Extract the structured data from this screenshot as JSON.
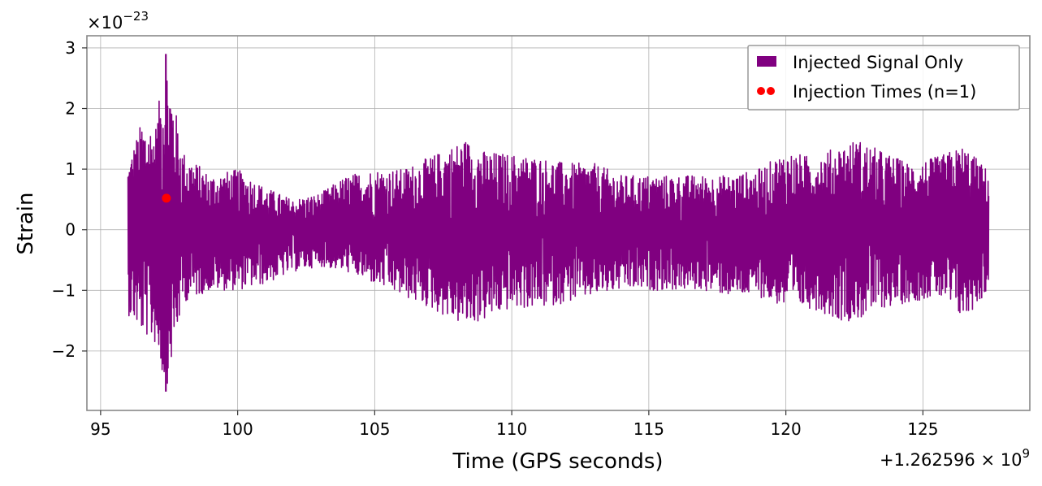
{
  "chart_data": {
    "type": "line",
    "title": "",
    "xlabel": "Time (GPS seconds)",
    "ylabel": "Strain",
    "x_offset_label": "+1.262596 × 10",
    "x_offset_exp": "9",
    "y_scale_label": "×10",
    "y_scale_exp": "−23",
    "xlim": [
      94.5,
      128.9
    ],
    "ylim": [
      -2.98,
      3.2
    ],
    "x_ticks": [
      95,
      100,
      105,
      110,
      115,
      120,
      125
    ],
    "x_tick_labels": [
      "95",
      "100",
      "105",
      "110",
      "115",
      "120",
      "125"
    ],
    "y_ticks": [
      -2,
      -1,
      0,
      1,
      2,
      3
    ],
    "y_tick_labels": [
      "−2",
      "−1",
      "0",
      "1",
      "2",
      "3"
    ],
    "grid": true,
    "legend_position": "top-right",
    "series": [
      {
        "name": "Injected Signal Only",
        "kind": "line",
        "color": "#800080",
        "x_start": 96.0,
        "x_end": 127.4,
        "envelope": [
          {
            "x": 96.0,
            "upper": 1.1,
            "lower": -1.4
          },
          {
            "x": 96.5,
            "upper": 1.8,
            "lower": -1.7
          },
          {
            "x": 97.0,
            "upper": 1.7,
            "lower": -1.9
          },
          {
            "x": 97.38,
            "upper": 2.9,
            "lower": -2.67
          },
          {
            "x": 98.0,
            "upper": 1.3,
            "lower": -1.2
          },
          {
            "x": 99.0,
            "upper": 0.9,
            "lower": -1.0
          },
          {
            "x": 100.0,
            "upper": 1.0,
            "lower": -1.0
          },
          {
            "x": 101.0,
            "upper": 0.7,
            "lower": -0.9
          },
          {
            "x": 102.0,
            "upper": 0.5,
            "lower": -0.7
          },
          {
            "x": 103.0,
            "upper": 0.6,
            "lower": -0.6
          },
          {
            "x": 104.0,
            "upper": 0.9,
            "lower": -0.7
          },
          {
            "x": 105.0,
            "upper": 1.0,
            "lower": -0.9
          },
          {
            "x": 106.0,
            "upper": 1.0,
            "lower": -1.1
          },
          {
            "x": 107.0,
            "upper": 1.2,
            "lower": -1.3
          },
          {
            "x": 108.3,
            "upper": 1.5,
            "lower": -1.6
          },
          {
            "x": 109.0,
            "upper": 1.3,
            "lower": -1.5
          },
          {
            "x": 110.0,
            "upper": 1.25,
            "lower": -1.3
          },
          {
            "x": 111.0,
            "upper": 1.2,
            "lower": -1.3
          },
          {
            "x": 112.0,
            "upper": 1.1,
            "lower": -1.2
          },
          {
            "x": 113.0,
            "upper": 1.1,
            "lower": -1.1
          },
          {
            "x": 114.0,
            "upper": 0.9,
            "lower": -1.0
          },
          {
            "x": 115.0,
            "upper": 0.9,
            "lower": -1.0
          },
          {
            "x": 116.0,
            "upper": 0.9,
            "lower": -1.0
          },
          {
            "x": 117.0,
            "upper": 0.9,
            "lower": -1.0
          },
          {
            "x": 118.0,
            "upper": 0.9,
            "lower": -1.1
          },
          {
            "x": 119.0,
            "upper": 1.0,
            "lower": -1.1
          },
          {
            "x": 120.0,
            "upper": 1.3,
            "lower": -1.3
          },
          {
            "x": 121.0,
            "upper": 1.2,
            "lower": -1.3
          },
          {
            "x": 122.0,
            "upper": 1.4,
            "lower": -1.5
          },
          {
            "x": 122.6,
            "upper": 1.5,
            "lower": -1.5
          },
          {
            "x": 123.5,
            "upper": 1.3,
            "lower": -1.3
          },
          {
            "x": 124.5,
            "upper": 1.1,
            "lower": -1.2
          },
          {
            "x": 125.5,
            "upper": 1.2,
            "lower": -1.1
          },
          {
            "x": 126.5,
            "upper": 1.4,
            "lower": -1.5
          },
          {
            "x": 127.4,
            "upper": 0.97,
            "lower": -1.0
          }
        ]
      },
      {
        "name": "Injection Times (n=1)",
        "kind": "scatter",
        "color": "#ff0000",
        "points": [
          {
            "x": 97.4,
            "y": 0.52
          }
        ]
      }
    ]
  }
}
